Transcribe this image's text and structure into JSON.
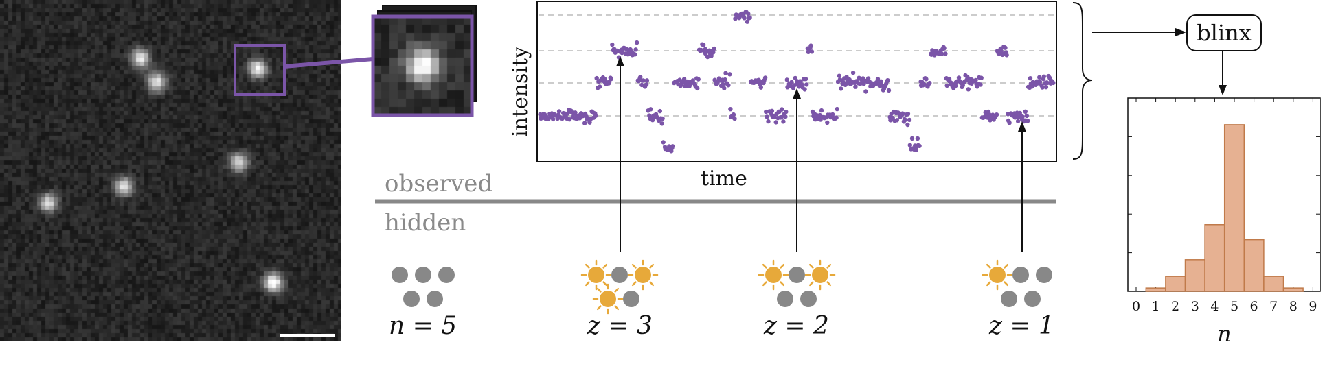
{
  "labels": {
    "observed": "observed",
    "hidden": "hidden",
    "x_axis": "time",
    "y_axis": "intensity",
    "model": "blinx",
    "hist_xlabel": "n"
  },
  "states": [
    {
      "label": "n = 5",
      "on": 0
    },
    {
      "label": "z = 3",
      "on": 3
    },
    {
      "label": "z = 2",
      "on": 2
    },
    {
      "label": "z = 1",
      "on": 1
    }
  ],
  "chart_data": [
    {
      "type": "scatter",
      "title": "",
      "xlabel": "time",
      "ylabel": "intensity",
      "levels": [
        0,
        1,
        2,
        3,
        4
      ],
      "segments": [
        {
          "t": [
            0,
            5
          ],
          "level": 1
        },
        {
          "t": [
            5,
            11
          ],
          "level": 1
        },
        {
          "t": [
            11,
            14
          ],
          "level": 2
        },
        {
          "t": [
            14,
            19
          ],
          "level": 3
        },
        {
          "t": [
            19,
            21
          ],
          "level": 2
        },
        {
          "t": [
            21,
            24
          ],
          "level": 1
        },
        {
          "t": [
            24,
            26
          ],
          "level": 0
        },
        {
          "t": [
            26,
            31
          ],
          "level": 2
        },
        {
          "t": [
            31,
            34
          ],
          "level": 3
        },
        {
          "t": [
            34,
            37
          ],
          "level": 2
        },
        {
          "t": [
            37,
            38
          ],
          "level": 1
        },
        {
          "t": [
            38,
            41
          ],
          "level": 4
        },
        {
          "t": [
            41,
            44
          ],
          "level": 2
        },
        {
          "t": [
            44,
            48
          ],
          "level": 1
        },
        {
          "t": [
            48,
            52
          ],
          "level": 2
        },
        {
          "t": [
            52,
            53
          ],
          "level": 3
        },
        {
          "t": [
            53,
            58
          ],
          "level": 1
        },
        {
          "t": [
            58,
            63
          ],
          "level": 2
        },
        {
          "t": [
            63,
            68
          ],
          "level": 2
        },
        {
          "t": [
            68,
            72
          ],
          "level": 1
        },
        {
          "t": [
            72,
            74
          ],
          "level": 0
        },
        {
          "t": [
            74,
            76
          ],
          "level": 2
        },
        {
          "t": [
            76,
            79
          ],
          "level": 3
        },
        {
          "t": [
            79,
            86
          ],
          "level": 2
        },
        {
          "t": [
            86,
            89
          ],
          "level": 1
        },
        {
          "t": [
            89,
            91
          ],
          "level": 3
        },
        {
          "t": [
            91,
            95
          ],
          "level": 1
        },
        {
          "t": [
            95,
            100
          ],
          "level": 2
        }
      ],
      "arrows": [
        {
          "t": 16,
          "level": 3,
          "state": "z = 3"
        },
        {
          "t": 50,
          "level": 2,
          "state": "z = 2"
        },
        {
          "t": 93,
          "level": 1,
          "state": "z = 1"
        }
      ]
    },
    {
      "type": "bar",
      "title": "",
      "xlabel": "n",
      "ylabel": "",
      "categories": [
        "0",
        "1",
        "2",
        "3",
        "4",
        "5",
        "6",
        "7",
        "8",
        "9"
      ],
      "values": [
        0.0,
        0.01,
        0.045,
        0.095,
        0.2,
        0.5,
        0.155,
        0.045,
        0.01,
        0.0
      ]
    }
  ],
  "colors": {
    "points": "#7b55a8",
    "box": "#7b55a8",
    "bars_fill": "#e6b192",
    "bars_edge": "#c07a4a",
    "on_emitter": "#e7a93a",
    "off_emitter": "#888888",
    "divider": "#888888"
  }
}
